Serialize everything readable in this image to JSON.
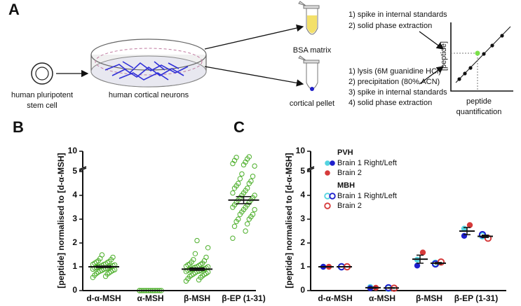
{
  "panel_a": {
    "label": "A",
    "stem_cell": [
      "human pluripotent",
      "stem cell"
    ],
    "neurons": "human cortical neurons",
    "bsa": "BSA matrix",
    "bsa_steps": [
      "1) spike in internal standards",
      "2) solid phase extraction"
    ],
    "pellet": "cortical pellet",
    "pellet_steps": [
      "1) lysis (6M guanidine HCl)",
      "2) precipitation (80% ACN)",
      "3) spike in internal standards",
      "4) solid phase extraction"
    ],
    "graph_axis": "[peptide]",
    "result": [
      "peptide",
      "quantification"
    ]
  },
  "chart_data": [
    {
      "type": "scatter",
      "panel_label": "B",
      "ylabel": "[peptide] normalised to [d-α-MSH]",
      "categories": [
        "d-α-MSH",
        "α-MSH",
        "β-MSH",
        "β-EP (1-31)"
      ],
      "color": "#4caf2a",
      "points": [
        [
          0.55,
          0.6,
          0.65,
          0.7,
          0.72,
          0.75,
          0.78,
          0.8,
          0.82,
          0.85,
          0.85,
          0.88,
          0.9,
          0.9,
          0.92,
          0.95,
          0.95,
          0.97,
          1.0,
          1.0,
          1.0,
          1.02,
          1.05,
          1.05,
          1.08,
          1.1,
          1.1,
          1.12,
          1.15,
          1.18,
          1.2,
          1.22,
          1.25,
          1.3,
          1.35,
          1.4,
          1.5
        ],
        [
          0,
          0,
          0,
          0,
          0,
          0,
          0,
          0,
          0,
          0,
          0,
          0,
          0,
          0
        ],
        [
          0.4,
          0.45,
          0.5,
          0.55,
          0.6,
          0.62,
          0.65,
          0.68,
          0.7,
          0.72,
          0.75,
          0.78,
          0.8,
          0.8,
          0.82,
          0.85,
          0.85,
          0.88,
          0.9,
          0.9,
          0.92,
          0.95,
          0.95,
          0.98,
          1.0,
          1.0,
          1.02,
          1.05,
          1.08,
          1.1,
          1.12,
          1.15,
          1.2,
          1.25,
          1.3,
          1.4,
          1.55,
          1.8,
          2.1
        ],
        [
          2.2,
          2.5,
          2.7,
          2.8,
          2.9,
          3.0,
          3.0,
          3.1,
          3.2,
          3.2,
          3.3,
          3.4,
          3.4,
          3.5,
          3.5,
          3.6,
          3.6,
          3.7,
          3.7,
          3.8,
          3.8,
          3.9,
          3.9,
          4.0,
          4.0,
          4.1,
          4.1,
          4.2,
          4.3,
          4.3,
          4.4,
          4.5,
          4.5,
          4.6,
          4.7,
          4.8,
          4.9,
          5.2,
          5.6,
          6.0,
          6.5,
          7.0,
          7.5,
          8.0,
          8.2
        ]
      ],
      "means": [
        1.0,
        0.0,
        0.9,
        3.8
      ],
      "sems": [
        0.03,
        0.0,
        0.05,
        0.15
      ],
      "ylim": [
        0,
        10
      ],
      "y_break": 5,
      "yticks": [
        0,
        1,
        2,
        3,
        4,
        5,
        10
      ]
    },
    {
      "type": "grouped-scatter",
      "panel_label": "C",
      "ylabel": "[peptide] normalised to [d-α-MSH]",
      "categories": [
        "d-α-MSH",
        "α-MSH",
        "β-MSH",
        "β-EP (1-31)"
      ],
      "groups": [
        {
          "name": "PVH",
          "filled": true,
          "entries": [
            {
              "name": "Brain 1 Right/Left",
              "series": [
                {
                  "color": "#55d4e0",
                  "values": [
                    1.0,
                    0.15,
                    1.3,
                    2.6
                  ]
                },
                {
                  "color": "#1e1ecc",
                  "values": [
                    1.0,
                    0.1,
                    1.05,
                    2.3
                  ]
                }
              ]
            },
            {
              "name": "Brain 2",
              "series": [
                {
                  "color": "#d63a3a",
                  "values": [
                    1.0,
                    0.12,
                    1.6,
                    2.75
                  ]
                }
              ]
            }
          ],
          "means": [
            1.0,
            0.12,
            1.32,
            2.5
          ],
          "sems": [
            0.0,
            0.02,
            0.17,
            0.15
          ]
        },
        {
          "name": "MBH",
          "filled": false,
          "entries": [
            {
              "name": "Brain 1 Right/Left",
              "series": [
                {
                  "color": "#55d4e0",
                  "values": [
                    1.0,
                    0.1,
                    1.15,
                    2.3
                  ]
                },
                {
                  "color": "#1e1ecc",
                  "values": [
                    1.0,
                    0.12,
                    1.12,
                    2.35
                  ]
                }
              ]
            },
            {
              "name": "Brain 2",
              "series": [
                {
                  "color": "#d63a3a",
                  "values": [
                    1.0,
                    0.1,
                    1.2,
                    2.2
                  ]
                }
              ]
            }
          ],
          "means": [
            1.0,
            0.11,
            1.15,
            2.28
          ],
          "sems": [
            0.0,
            0.01,
            0.03,
            0.05
          ]
        }
      ],
      "ylim": [
        0,
        10
      ],
      "y_break": 5,
      "yticks": [
        0,
        1,
        2,
        3,
        4,
        5,
        10
      ]
    }
  ]
}
